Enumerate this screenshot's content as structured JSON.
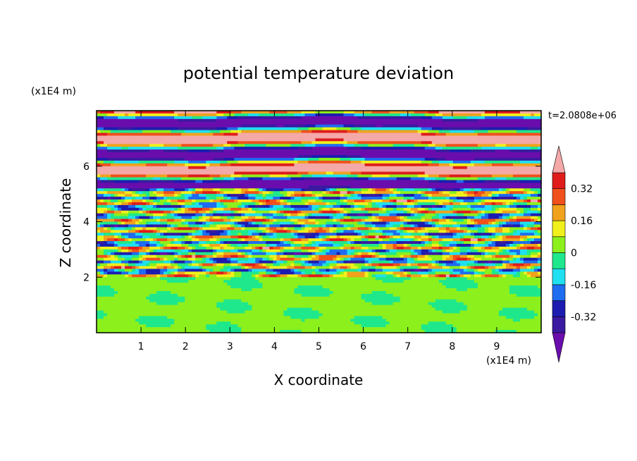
{
  "chart_data": {
    "type": "heatmap",
    "title": "potential temperature deviation",
    "xlabel": "X coordinate",
    "ylabel": "Z coordinate",
    "x_unit": "(x1E4 m)",
    "y_unit": "(x1E4 m)",
    "time_label": "t=2.0808e+06",
    "xlim": [
      0,
      10
    ],
    "ylim": [
      0,
      8
    ],
    "x_ticks": [
      "1",
      "2",
      "3",
      "4",
      "5",
      "6",
      "7",
      "8",
      "9"
    ],
    "y_ticks": [
      "2",
      "4",
      "6"
    ],
    "colorbar": {
      "levels": [
        -0.4,
        -0.32,
        -0.24,
        -0.16,
        -0.08,
        0,
        0.08,
        0.16,
        0.24,
        0.32,
        0.4
      ],
      "labels": [
        "0.32",
        "0.16",
        "0",
        "-0.16",
        "-0.32"
      ],
      "label_values": [
        0.32,
        0.16,
        0,
        -0.16,
        -0.32
      ],
      "colors": [
        "#6a0dad",
        "#3a1aa0",
        "#1c1cb0",
        "#1e6cf0",
        "#1fe0f0",
        "#1fe88c",
        "#8cf01c",
        "#f0f01c",
        "#f0a21c",
        "#f0501c",
        "#e01c1c",
        "#f4a8a8"
      ],
      "extend": "both"
    },
    "field_description_bands": [
      {
        "z_range": [
          0,
          2.0
        ],
        "pattern": "calm green layer with light-green swirls"
      },
      {
        "z_range": [
          2.0,
          5.2
        ],
        "pattern": "turbulent mixed bands of all levels"
      },
      {
        "z_range": [
          5.2,
          8.0
        ],
        "pattern": "alternating strong positive (pink) and strong negative (purple) layers"
      }
    ]
  }
}
